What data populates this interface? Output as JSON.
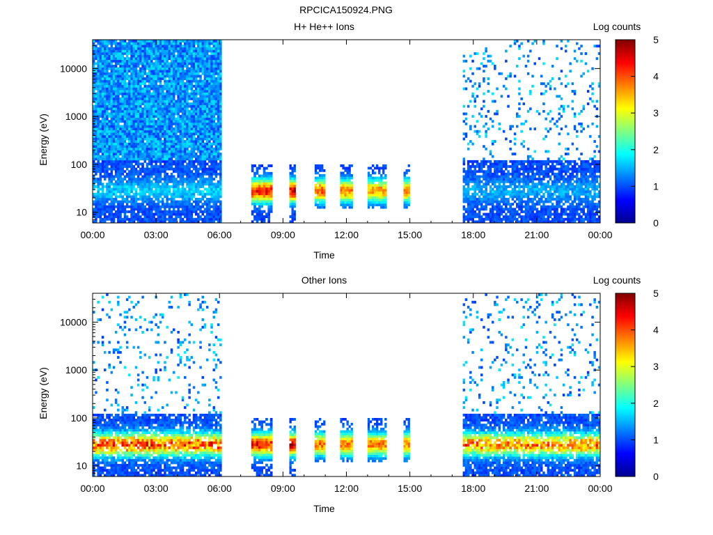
{
  "figure": {
    "title": "RPCICA150924.PNG"
  },
  "colorbar_colors": [
    "#00008f",
    "#0000ff",
    "#0080ff",
    "#00ffff",
    "#80ff80",
    "#ffff00",
    "#ff8000",
    "#ff0000",
    "#800000"
  ],
  "chart_data": [
    {
      "type": "heatmap",
      "title": "H+ He++ Ions",
      "xlabel": "Time",
      "ylabel": "Energy (eV)",
      "x_ticks": [
        "00:00",
        "03:00",
        "06:00",
        "09:00",
        "12:00",
        "15:00",
        "18:00",
        "21:00",
        "00:00"
      ],
      "xlim_hours": [
        0,
        24
      ],
      "y_scale": "log",
      "ylim": [
        6,
        40000
      ],
      "y_ticks": [
        {
          "value": 10,
          "label": "10"
        },
        {
          "value": 100,
          "label": "100"
        },
        {
          "value": 1000,
          "label": "1000"
        },
        {
          "value": 10000,
          "label": "10000"
        }
      ],
      "colorbar": {
        "label": "Log counts",
        "range": [
          0,
          5
        ],
        "ticks": [
          "0",
          "1",
          "2",
          "3",
          "4",
          "5"
        ]
      },
      "coverage_blocks": [
        {
          "t_start": 0.0,
          "t_end": 6.1,
          "e_min": 6,
          "e_max": 40000,
          "peak_log_counts": 1.6
        },
        {
          "t_start": 7.5,
          "t_end": 8.5,
          "e_min": 6,
          "e_max": 100,
          "peak_log_counts": 4.6
        },
        {
          "t_start": 9.3,
          "t_end": 9.6,
          "e_min": 6,
          "e_max": 100,
          "peak_log_counts": 4.8
        },
        {
          "t_start": 10.5,
          "t_end": 11.0,
          "e_min": 12,
          "e_max": 100,
          "peak_log_counts": 4.2
        },
        {
          "t_start": 11.7,
          "t_end": 12.3,
          "e_min": 12,
          "e_max": 100,
          "peak_log_counts": 4.0
        },
        {
          "t_start": 13.0,
          "t_end": 13.9,
          "e_min": 12,
          "e_max": 100,
          "peak_log_counts": 3.8
        },
        {
          "t_start": 14.7,
          "t_end": 15.0,
          "e_min": 12,
          "e_max": 100,
          "peak_log_counts": 4.0
        },
        {
          "t_start": 17.5,
          "t_end": 24.0,
          "e_min": 6,
          "e_max": 40000,
          "peak_log_counts": 1.4
        }
      ]
    },
    {
      "type": "heatmap",
      "title": "Other Ions",
      "xlabel": "Time",
      "ylabel": "Energy (eV)",
      "x_ticks": [
        "00:00",
        "03:00",
        "06:00",
        "09:00",
        "12:00",
        "15:00",
        "18:00",
        "21:00",
        "00:00"
      ],
      "xlim_hours": [
        0,
        24
      ],
      "y_scale": "log",
      "ylim": [
        6,
        40000
      ],
      "y_ticks": [
        {
          "value": 10,
          "label": "10"
        },
        {
          "value": 100,
          "label": "100"
        },
        {
          "value": 1000,
          "label": "1000"
        },
        {
          "value": 10000,
          "label": "10000"
        }
      ],
      "colorbar": {
        "label": "Log counts",
        "range": [
          0,
          5
        ],
        "ticks": [
          "0",
          "1",
          "2",
          "3",
          "4",
          "5"
        ]
      },
      "coverage_blocks": [
        {
          "t_start": 0.0,
          "t_end": 6.1,
          "e_min": 6,
          "e_max": 40000,
          "peak_log_counts": 4.5
        },
        {
          "t_start": 7.5,
          "t_end": 8.5,
          "e_min": 6,
          "e_max": 100,
          "peak_log_counts": 4.6
        },
        {
          "t_start": 9.3,
          "t_end": 9.6,
          "e_min": 6,
          "e_max": 100,
          "peak_log_counts": 4.8
        },
        {
          "t_start": 10.5,
          "t_end": 11.0,
          "e_min": 12,
          "e_max": 100,
          "peak_log_counts": 4.0
        },
        {
          "t_start": 11.7,
          "t_end": 12.3,
          "e_min": 12,
          "e_max": 100,
          "peak_log_counts": 4.0
        },
        {
          "t_start": 13.0,
          "t_end": 13.9,
          "e_min": 12,
          "e_max": 100,
          "peak_log_counts": 4.0
        },
        {
          "t_start": 14.7,
          "t_end": 15.0,
          "e_min": 12,
          "e_max": 100,
          "peak_log_counts": 4.0
        },
        {
          "t_start": 17.5,
          "t_end": 24.0,
          "e_min": 6,
          "e_max": 40000,
          "peak_log_counts": 4.2
        }
      ]
    }
  ]
}
